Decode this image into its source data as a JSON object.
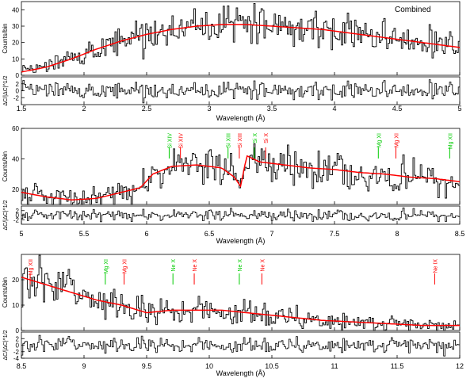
{
  "figure_label": "Combined",
  "chart_data": [
    {
      "type": "line",
      "panel": "top",
      "title": "Combined",
      "xlabel": "Wavelength (Å)",
      "ylabel_main": "Counts/bin",
      "ylabel_resid": "ΔC/|ΔC|^1/2",
      "xlim": [
        1.5,
        5.0
      ],
      "ylim_main": [
        0,
        45
      ],
      "ylim_resid": [
        -4,
        4
      ],
      "xticks": [
        1.5,
        2,
        2.5,
        3,
        3.5,
        4,
        4.5,
        5
      ],
      "yticks_main": [
        0,
        10,
        20,
        30,
        40
      ],
      "yticks_resid": [
        -2,
        0,
        2
      ],
      "model_x": [
        1.5,
        1.7,
        1.9,
        2.1,
        2.3,
        2.5,
        2.7,
        2.9,
        3.1,
        3.3,
        3.5,
        3.7,
        3.9,
        4.1,
        4.3,
        4.5,
        4.7,
        4.9,
        5.0
      ],
      "model_y": [
        2,
        5,
        10,
        16,
        21,
        25,
        28,
        30,
        31,
        31,
        30,
        29,
        28,
        26,
        24,
        22,
        20,
        18,
        17
      ],
      "series": [
        {
          "name": "",
          "role": "data",
          "color": "#000000"
        },
        {
          "name": "",
          "role": "model",
          "color": "#ff0000"
        }
      ],
      "line_labels": []
    },
    {
      "type": "line",
      "panel": "middle",
      "xlabel": "Wavelength (Å)",
      "ylabel_main": "Counts/bin",
      "ylabel_resid": "ΔC/|ΔC|^1/2",
      "xlim": [
        5.0,
        8.5
      ],
      "ylim_main": [
        10,
        60
      ],
      "ylim_resid": [
        -4,
        4
      ],
      "xticks": [
        5,
        5.5,
        6,
        6.5,
        7,
        7.5,
        8,
        8.5
      ],
      "yticks_main": [
        20,
        40,
        60
      ],
      "yticks_resid": [
        -2,
        0,
        2
      ],
      "model_x": [
        5.0,
        5.2,
        5.4,
        5.6,
        5.8,
        5.95,
        6.05,
        6.2,
        6.4,
        6.6,
        6.7,
        6.75,
        6.8,
        6.9,
        7.1,
        7.3,
        7.5,
        7.7,
        7.9,
        8.1,
        8.3,
        8.5
      ],
      "model_y": [
        18,
        15,
        13,
        14,
        18,
        21,
        30,
        35,
        36,
        34,
        28,
        22,
        42,
        38,
        36,
        34,
        33,
        31,
        30,
        28,
        27,
        25
      ],
      "series": [
        {
          "name": "",
          "role": "data",
          "color": "#000000"
        },
        {
          "name": "",
          "role": "model",
          "color": "#ff0000"
        }
      ],
      "line_labels": [
        {
          "text": "Si XIV",
          "x": 6.18,
          "color": "#00cc00"
        },
        {
          "text": "Si XIV",
          "x": 6.27,
          "color": "#ff0000"
        },
        {
          "text": "Si XIII",
          "x": 6.65,
          "color": "#00cc00"
        },
        {
          "text": "Si XIII",
          "x": 6.74,
          "color": "#ff0000"
        },
        {
          "text": "Si X",
          "x": 6.86,
          "color": "#00cc00"
        },
        {
          "text": "Si X",
          "x": 6.95,
          "color": "#ff0000"
        },
        {
          "text": "Mg XI",
          "x": 7.85,
          "color": "#00cc00"
        },
        {
          "text": "Mg XI",
          "x": 7.99,
          "color": "#ff0000"
        },
        {
          "text": "Mg XII",
          "x": 8.42,
          "color": "#00cc00"
        }
      ]
    },
    {
      "type": "line",
      "panel": "bottom",
      "xlabel": "Wavelength (Å)",
      "ylabel_main": "Counts/bin",
      "ylabel_resid": "ΔC/|ΔC|^1/2",
      "xlim": [
        8.5,
        12.0
      ],
      "ylim_main": [
        0,
        30
      ],
      "ylim_resid": [
        -4,
        4
      ],
      "xticks": [
        8.5,
        9,
        9.5,
        10,
        10.5,
        11,
        11.5,
        12
      ],
      "yticks_main": [
        0,
        10,
        20
      ],
      "yticks_resid": [
        -4,
        -2,
        0,
        2
      ],
      "model_x": [
        8.5,
        8.7,
        8.9,
        9.1,
        9.3,
        9.5,
        9.7,
        9.9,
        10.1,
        10.3,
        10.5,
        10.7,
        10.9,
        11.1,
        11.3,
        11.5,
        11.7,
        11.9,
        12.0
      ],
      "model_y": [
        21,
        18,
        15,
        12,
        10,
        7,
        8,
        8,
        8,
        7,
        6,
        5,
        4,
        3.5,
        3,
        2.5,
        2,
        2,
        2
      ],
      "series": [
        {
          "name": "",
          "role": "data",
          "color": "#000000"
        },
        {
          "name": "",
          "role": "model",
          "color": "#ff0000"
        }
      ],
      "line_labels": [
        {
          "text": "Mg XII",
          "x": 8.57,
          "color": "#ff0000"
        },
        {
          "text": "Mg XI",
          "x": 9.17,
          "color": "#00cc00"
        },
        {
          "text": "Mg XI",
          "x": 9.32,
          "color": "#ff0000"
        },
        {
          "text": "Ne X",
          "x": 9.71,
          "color": "#00cc00"
        },
        {
          "text": "Ne X",
          "x": 9.88,
          "color": "#ff0000"
        },
        {
          "text": "Ne X",
          "x": 10.24,
          "color": "#00cc00"
        },
        {
          "text": "Ne X",
          "x": 10.42,
          "color": "#ff0000"
        },
        {
          "text": "Ne IX",
          "x": 11.8,
          "color": "#ff0000"
        }
      ]
    }
  ]
}
